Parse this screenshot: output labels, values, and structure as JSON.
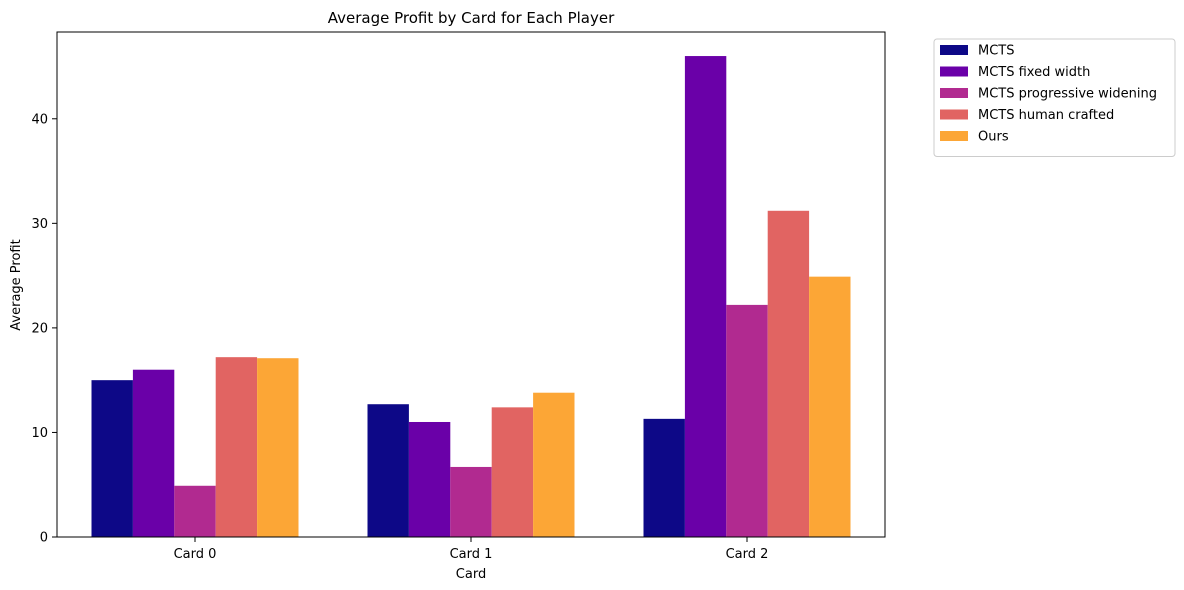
{
  "chart_data": {
    "type": "bar",
    "title": "Average Profit by Card for Each Player",
    "xlabel": "Card",
    "ylabel": "Average Profit",
    "categories": [
      "Card 0",
      "Card 1",
      "Card 2"
    ],
    "ylim": [
      0,
      48.3
    ],
    "yticks": [
      0,
      10,
      20,
      30,
      40
    ],
    "grid": false,
    "legend_position": "outside top-right",
    "series": [
      {
        "name": "MCTS",
        "color": "#0d0887",
        "values": [
          15.0,
          12.7,
          11.3
        ]
      },
      {
        "name": "MCTS fixed width",
        "color": "#6a00a8",
        "values": [
          16.0,
          11.0,
          46.0
        ]
      },
      {
        "name": "MCTS progressive widening",
        "color": "#b12a90",
        "values": [
          4.9,
          6.7,
          22.2
        ]
      },
      {
        "name": "MCTS human crafted",
        "color": "#e16462",
        "values": [
          17.2,
          12.4,
          31.2
        ]
      },
      {
        "name": "Ours",
        "color": "#fca636",
        "values": [
          17.1,
          13.8,
          24.9
        ]
      }
    ]
  }
}
